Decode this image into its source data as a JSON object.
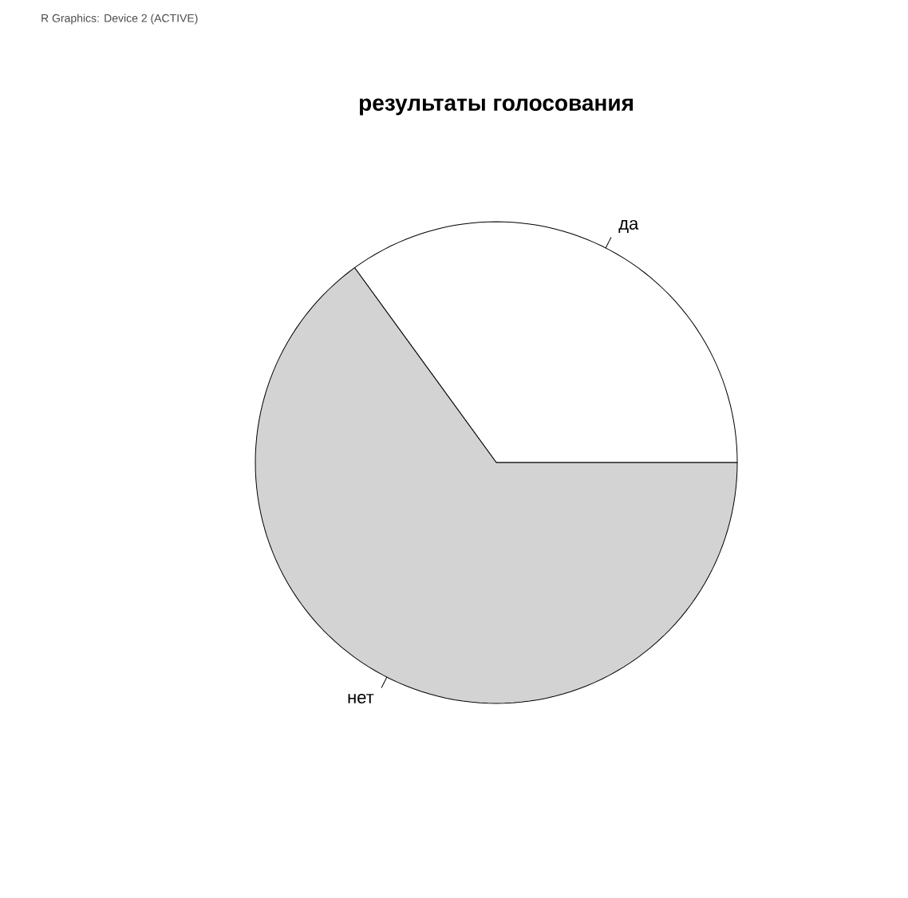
{
  "chart_data": {
    "type": "pie",
    "title": "результаты голосования",
    "categories": [
      "да",
      "нет"
    ],
    "values": [
      35,
      65
    ],
    "colors": [
      "#ffffff",
      "#d3d3d3"
    ],
    "annotations": [
      "R Graphics: Device 2 (ACTIVE)"
    ]
  }
}
